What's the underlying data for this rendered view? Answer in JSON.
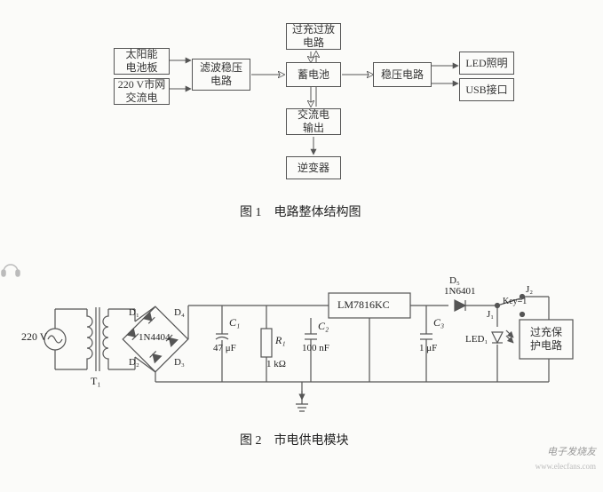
{
  "colors": {
    "line": "#555555",
    "bg": "#fbfbf9",
    "text": "#333333",
    "wm": "#999999"
  },
  "figure1": {
    "caption": "图 1　电路整体结构图",
    "blocks": {
      "solar": "太阳能\n电池板",
      "mains": "220 V市网\n交流电",
      "filter": "滤波稳压\n电路",
      "overcharge": "过充过放\n电路",
      "battery": "蓄电池",
      "acout": "交流电\n输出",
      "inverter": "逆变器",
      "reg": "稳压电路",
      "led": "LED照明",
      "usb": "USB接口"
    }
  },
  "figure2": {
    "caption": "图 2　市电供电模块",
    "labels": {
      "vin": "220 V",
      "t1": "T₁",
      "d1": "D₁",
      "d2": "D₂",
      "d3": "D₃",
      "d4": "D₄",
      "bridge": "1N4404",
      "c1": "C₁",
      "c1v": "47 μF",
      "r1": "R₁",
      "r1v": "1 kΩ",
      "c2": "C₂",
      "c2v": "100 nF",
      "reg": "LM7816KC",
      "c3": "C₃",
      "c3v": "1 μF",
      "d5": "D₅",
      "d5v": "1N6401",
      "j1": "J₁",
      "j2": "J₂",
      "key": "Key=1",
      "led": "LED₁",
      "prot": "过充保\n护电路"
    }
  },
  "watermark": "电子发烧友",
  "watermark_url": "www.elecfans.com"
}
